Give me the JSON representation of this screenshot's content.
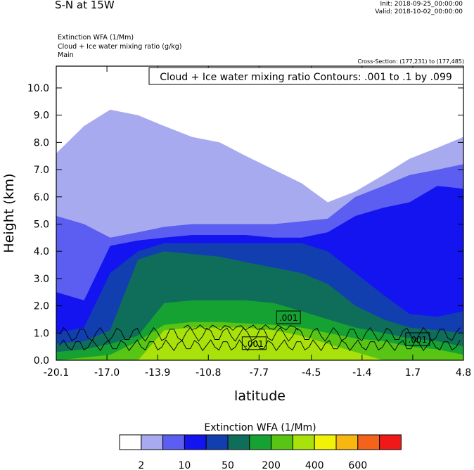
{
  "header": {
    "title": "S-N at 15W",
    "init": "Init: 2018-09-25_00:00:00",
    "valid": "Valid: 2018-10-02_00:00:00",
    "subtitle_lines": [
      "Extinction WFA   (1/Mm)",
      "Cloud + Ice water mixing ratio   (g/kg)",
      "Main"
    ],
    "cross_section": "Cross-Section: (177,231) to (177,485)"
  },
  "chart_data": {
    "type": "contour",
    "title": "S-N at 15W",
    "xlabel": "latitude",
    "ylabel": "Height (km)",
    "xlim": [
      -20.1,
      4.8
    ],
    "ylim": [
      0.0,
      10.8
    ],
    "x_ticks": [
      "-20.1",
      "-17.0",
      "-13.9",
      "-10.8",
      "-7.7",
      "-4.5",
      "-1.4",
      "1.7",
      "4.8"
    ],
    "x_tick_values": [
      -20.1,
      -17.0,
      -13.9,
      -10.8,
      -7.7,
      -4.5,
      -1.4,
      1.7,
      4.8
    ],
    "y_ticks": [
      "0.0",
      "1.0",
      "2.0",
      "3.0",
      "4.0",
      "5.0",
      "6.0",
      "7.0",
      "8.0",
      "9.0",
      "10.0"
    ],
    "y_tick_values": [
      0,
      1,
      2,
      3,
      4,
      5,
      6,
      7,
      8,
      9,
      10
    ],
    "contour_info": "Cloud + Ice water mixing ratio Contours: .001 to .1 by .099",
    "contour_labels": [
      ".001",
      ".001",
      ".001"
    ],
    "filled_field": {
      "name": "Extinction WFA",
      "units": "1/Mm",
      "layers_as_top_height_km": [
        {
          "color": "#a8aaf0",
          "tops": [
            7.6,
            8.6,
            9.2,
            9.0,
            8.6,
            8.2,
            8.0,
            7.5,
            7.0,
            6.5,
            5.8,
            6.2,
            6.8,
            7.4,
            7.8,
            8.2
          ]
        },
        {
          "color": "#5b5ef0",
          "tops": [
            5.3,
            5.0,
            4.5,
            4.7,
            4.9,
            5.0,
            5.0,
            5.0,
            5.0,
            5.1,
            5.2,
            6.0,
            6.4,
            6.8,
            7.0,
            7.2
          ]
        },
        {
          "color": "#1414f0",
          "tops": [
            2.5,
            2.2,
            4.2,
            4.4,
            4.5,
            4.6,
            4.6,
            4.6,
            4.5,
            4.5,
            4.7,
            5.3,
            5.6,
            5.8,
            6.4,
            6.3
          ]
        },
        {
          "color": "#123fb0",
          "tops": [
            1.0,
            1.2,
            3.2,
            4.0,
            4.3,
            4.3,
            4.3,
            4.3,
            4.3,
            4.3,
            4.0,
            3.2,
            2.4,
            1.7,
            1.6,
            1.8
          ]
        },
        {
          "color": "#0f6e5a",
          "tops": [
            0.6,
            0.7,
            1.1,
            3.7,
            4.0,
            3.9,
            3.8,
            3.6,
            3.4,
            3.2,
            2.8,
            2.0,
            1.5,
            1.2,
            1.1,
            1.0
          ]
        },
        {
          "color": "#16a232",
          "tops": [
            0.3,
            0.4,
            0.6,
            0.9,
            2.1,
            2.2,
            2.2,
            2.2,
            2.1,
            1.8,
            1.5,
            1.2,
            1.0,
            0.8,
            0.7,
            0.5
          ]
        },
        {
          "color": "#58c515",
          "tops": [
            0.0,
            0.1,
            0.2,
            0.7,
            1.3,
            1.4,
            1.4,
            1.35,
            1.3,
            1.2,
            1.0,
            0.8,
            0.7,
            0.5,
            0.4,
            0.2
          ]
        },
        {
          "color": "#a9e20b",
          "tops": [
            0,
            0,
            0,
            0,
            1.1,
            1.2,
            1.2,
            1.2,
            1.1,
            0.9,
            0.6,
            0.3,
            0,
            0,
            0,
            0
          ]
        }
      ],
      "layer_x": [
        -20.1,
        -18.4,
        -16.8,
        -15.1,
        -13.5,
        -11.8,
        -10.1,
        -8.5,
        -6.8,
        -5.1,
        -3.5,
        -1.8,
        -0.1,
        1.5,
        3.2,
        4.8
      ]
    },
    "colorbar": {
      "title": "Extinction WFA  (1/Mm)",
      "colors": [
        "#ffffff",
        "#a8aaf0",
        "#5b5ef0",
        "#1414f0",
        "#123fb0",
        "#0f6e5a",
        "#16a232",
        "#58c515",
        "#a9e20b",
        "#f2f208",
        "#f8b710",
        "#f5621a",
        "#f01818"
      ],
      "labels": [
        "2",
        "10",
        "50",
        "200",
        "400",
        "600"
      ]
    }
  }
}
